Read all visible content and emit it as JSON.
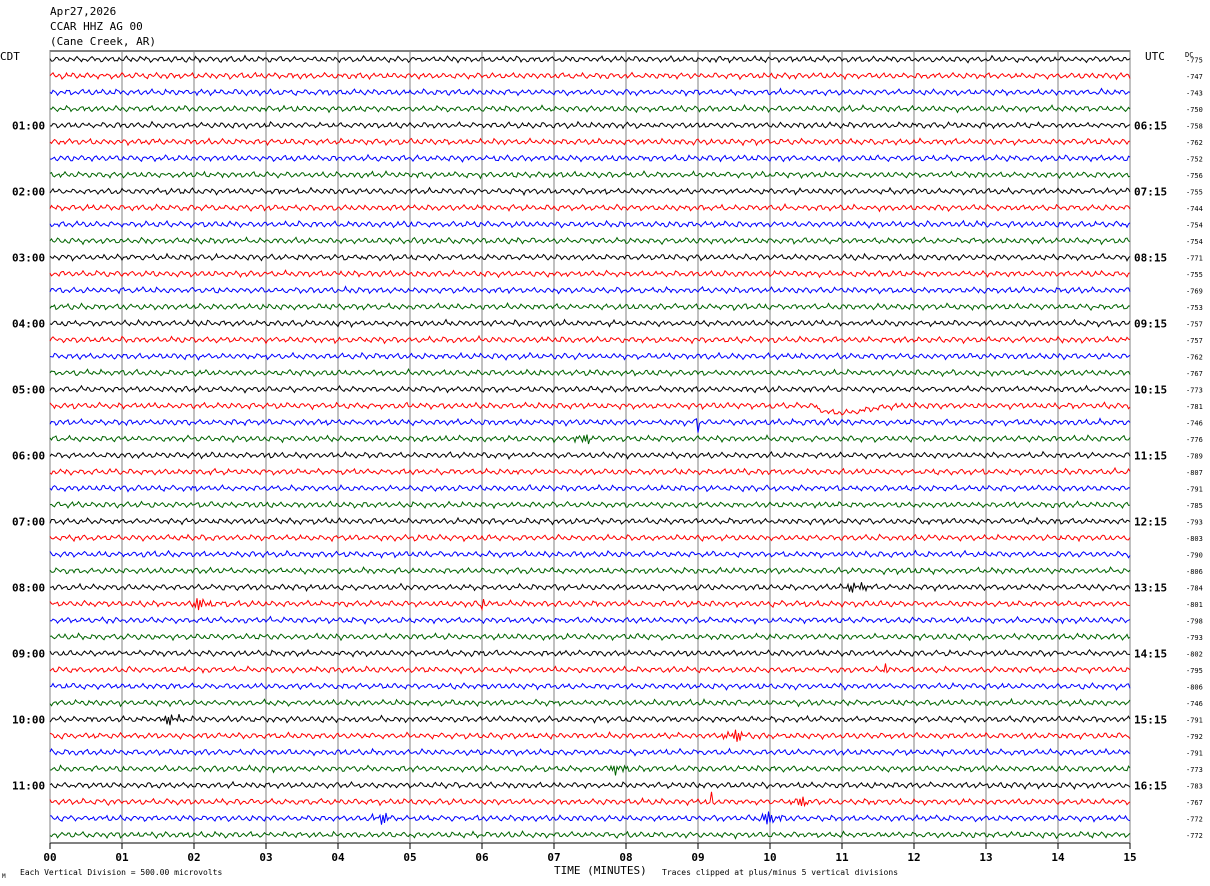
{
  "header": {
    "date": "Apr27,2026",
    "station": "CCAR HHZ AG 00",
    "location": "(Cane Creek, AR)"
  },
  "left_tz": "CDT",
  "right_tz": "UTC",
  "dc_label": "DC",
  "footer": {
    "scale": "Each Vertical Division =  500.00 microvolts",
    "clip": "Traces clipped at plus/minus 5 vertical divisions",
    "corner_mark": "M"
  },
  "chart_data": {
    "type": "line",
    "title": "",
    "xlabel": "TIME (MINUTES)",
    "ylabel": "",
    "xlim": [
      0,
      15
    ],
    "x_ticks": [
      "00",
      "01",
      "02",
      "03",
      "04",
      "05",
      "06",
      "07",
      "08",
      "09",
      "10",
      "11",
      "12",
      "13",
      "14",
      "15"
    ],
    "trace_colors": [
      "#000000",
      "#ff0000",
      "#0000ff",
      "#006400"
    ],
    "trace_count": 48,
    "left_hour_labels": [
      "01:00",
      "02:00",
      "03:00",
      "04:00",
      "05:00",
      "06:00",
      "07:00",
      "08:00",
      "09:00",
      "10:00",
      "11:00"
    ],
    "right_hour_labels": [
      "06:15",
      "07:15",
      "08:15",
      "09:15",
      "10:15",
      "11:15",
      "12:15",
      "13:15",
      "14:15",
      "15:15",
      "16:15"
    ],
    "dc_offsets": [
      -775,
      -747,
      -743,
      -750,
      -758,
      -762,
      -752,
      -756,
      -755,
      -744,
      -754,
      -754,
      -771,
      -755,
      -769,
      -753,
      -757,
      -757,
      -762,
      -767,
      -773,
      -781,
      -746,
      -776,
      -789,
      -807,
      -791,
      -785,
      -793,
      -803,
      -790,
      -806,
      -784,
      -801,
      -798,
      -793,
      -802,
      -795,
      -806,
      -746,
      -791,
      -792,
      -791,
      -773,
      -783,
      -767,
      -772,
      -772
    ],
    "events": [
      {
        "trace": 21,
        "x_minutes": 11.0,
        "kind": "sag"
      },
      {
        "trace": 22,
        "x_minutes": 9.0,
        "kind": "spike"
      },
      {
        "trace": 23,
        "x_minutes": 7.4,
        "kind": "burst"
      },
      {
        "trace": 32,
        "x_minutes": 11.2,
        "kind": "burst"
      },
      {
        "trace": 33,
        "x_minutes": 2.1,
        "kind": "burst"
      },
      {
        "trace": 33,
        "x_minutes": 6.0,
        "kind": "spike"
      },
      {
        "trace": 37,
        "x_minutes": 11.6,
        "kind": "spike"
      },
      {
        "trace": 40,
        "x_minutes": 1.7,
        "kind": "burst"
      },
      {
        "trace": 41,
        "x_minutes": 9.5,
        "kind": "burst"
      },
      {
        "trace": 43,
        "x_minutes": 7.9,
        "kind": "burst"
      },
      {
        "trace": 45,
        "x_minutes": 9.2,
        "kind": "spike"
      },
      {
        "trace": 45,
        "x_minutes": 10.4,
        "kind": "burst"
      },
      {
        "trace": 46,
        "x_minutes": 4.6,
        "kind": "burst"
      },
      {
        "trace": 46,
        "x_minutes": 10.0,
        "kind": "burst"
      }
    ]
  }
}
